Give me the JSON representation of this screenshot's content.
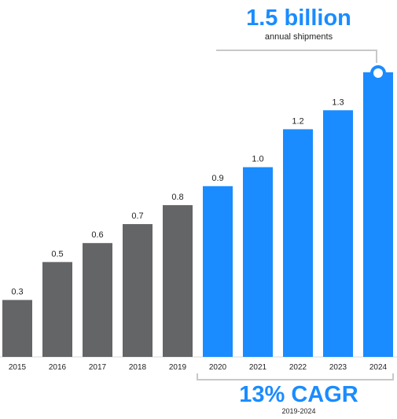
{
  "annotations": {
    "top_headline": "1.5 billion",
    "top_subline": "annual shipments",
    "bottom_headline": "13% CAGR",
    "bottom_subline": "2019-2024"
  },
  "colors": {
    "historical": "#646567",
    "forecast": "#1a8cff",
    "bracket": "#c8c8c8",
    "label": "#222222"
  },
  "chart_data": {
    "type": "bar",
    "categories": [
      "2015",
      "2016",
      "2017",
      "2018",
      "2019",
      "2020",
      "2021",
      "2022",
      "2023",
      "2024"
    ],
    "values": [
      0.3,
      0.5,
      0.6,
      0.7,
      0.8,
      0.9,
      1.0,
      1.2,
      1.3,
      1.5
    ],
    "data_labels": [
      "0.3",
      "0.5",
      "0.6",
      "0.7",
      "0.8",
      "0.9",
      "1.0",
      "1.2",
      "1.3",
      ""
    ],
    "series_split": {
      "historical": [
        "2015",
        "2016",
        "2017",
        "2018",
        "2019"
      ],
      "forecast": [
        "2020",
        "2021",
        "2022",
        "2023",
        "2024"
      ]
    },
    "ylim": [
      0,
      1.5
    ],
    "grid": false,
    "legend": "none",
    "title": "",
    "xlabel": "",
    "ylabel": ""
  }
}
